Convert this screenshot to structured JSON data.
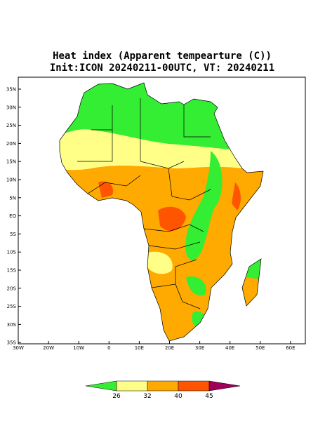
{
  "header": {
    "title": "Heat index (Apparent tempearture (C))",
    "subtitle": "Init:ICON 20240211-00UTC, VT: 20240211"
  },
  "map": {
    "lat_labels": [
      "35N",
      "30N",
      "25N",
      "20N",
      "15N",
      "10N",
      "5N",
      "EQ",
      "5S",
      "10S",
      "15S",
      "20S",
      "25S",
      "30S",
      "35S"
    ],
    "lon_labels": [
      "30W",
      "20W",
      "10W",
      "0",
      "10E",
      "20E",
      "30E",
      "40E",
      "50E",
      "60E"
    ]
  },
  "colorbar": {
    "levels": [
      26,
      32,
      40,
      45
    ],
    "colors": [
      "#33ee33",
      "#ffff88",
      "#ffaa00",
      "#ff5500",
      "#a0005a"
    ]
  }
}
